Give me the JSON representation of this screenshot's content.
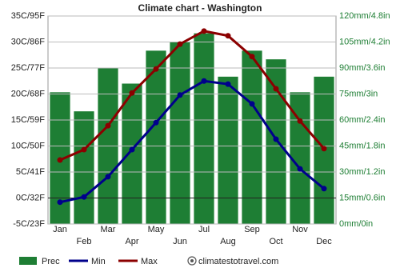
{
  "chart_data": {
    "type": "climate",
    "title": "Climate chart - Washington",
    "categories": [
      "Jan",
      "Feb",
      "Mar",
      "Apr",
      "May",
      "Jun",
      "Jul",
      "Aug",
      "Sep",
      "Oct",
      "Nov",
      "Dec"
    ],
    "series": [
      {
        "name": "Prec",
        "type": "bar",
        "axis": "y2",
        "color": "#1e7e34",
        "values": [
          76,
          65,
          90,
          81,
          100,
          105,
          110,
          85,
          100,
          95,
          76,
          85
        ]
      },
      {
        "name": "Min",
        "type": "line",
        "color": "#00008b",
        "values": [
          -0.8,
          0.2,
          4.1,
          9.3,
          14.5,
          19.8,
          22.5,
          21.9,
          18.1,
          11.3,
          5.6,
          1.8
        ]
      },
      {
        "name": "Max",
        "type": "line",
        "color": "#8b0000",
        "values": [
          7.3,
          9.3,
          13.9,
          20.2,
          24.8,
          29.6,
          32.1,
          31.2,
          27.2,
          21,
          14.8,
          9.5
        ]
      }
    ],
    "ylim": [
      -5,
      35
    ],
    "yticks": [
      {
        "value": -5,
        "label": "-5C/23F"
      },
      {
        "value": 0,
        "label": "0C/32F"
      },
      {
        "value": 5,
        "label": "5C/41F"
      },
      {
        "value": 10,
        "label": "10C/50F"
      },
      {
        "value": 15,
        "label": "15C/59F"
      },
      {
        "value": 20,
        "label": "20C/68F"
      },
      {
        "value": 25,
        "label": "25C/77F"
      },
      {
        "value": 30,
        "label": "30C/86F"
      },
      {
        "value": 35,
        "label": "35C/95F"
      }
    ],
    "y2lim": [
      0,
      120
    ],
    "y2ticks": [
      {
        "value": 0,
        "label": "0mm/0in"
      },
      {
        "value": 15,
        "label": "15mm/0.6in"
      },
      {
        "value": 30,
        "label": "30mm/1.2in"
      },
      {
        "value": 45,
        "label": "45mm/1.8in"
      },
      {
        "value": 60,
        "label": "60mm/2.4in"
      },
      {
        "value": 75,
        "label": "75mm/3in"
      },
      {
        "value": 90,
        "label": "90mm/3.6in"
      },
      {
        "value": 105,
        "label": "105mm/4.2in"
      },
      {
        "value": 120,
        "label": "120mm/4.8in"
      }
    ],
    "grid": true,
    "source": "climatestotravel.com"
  }
}
